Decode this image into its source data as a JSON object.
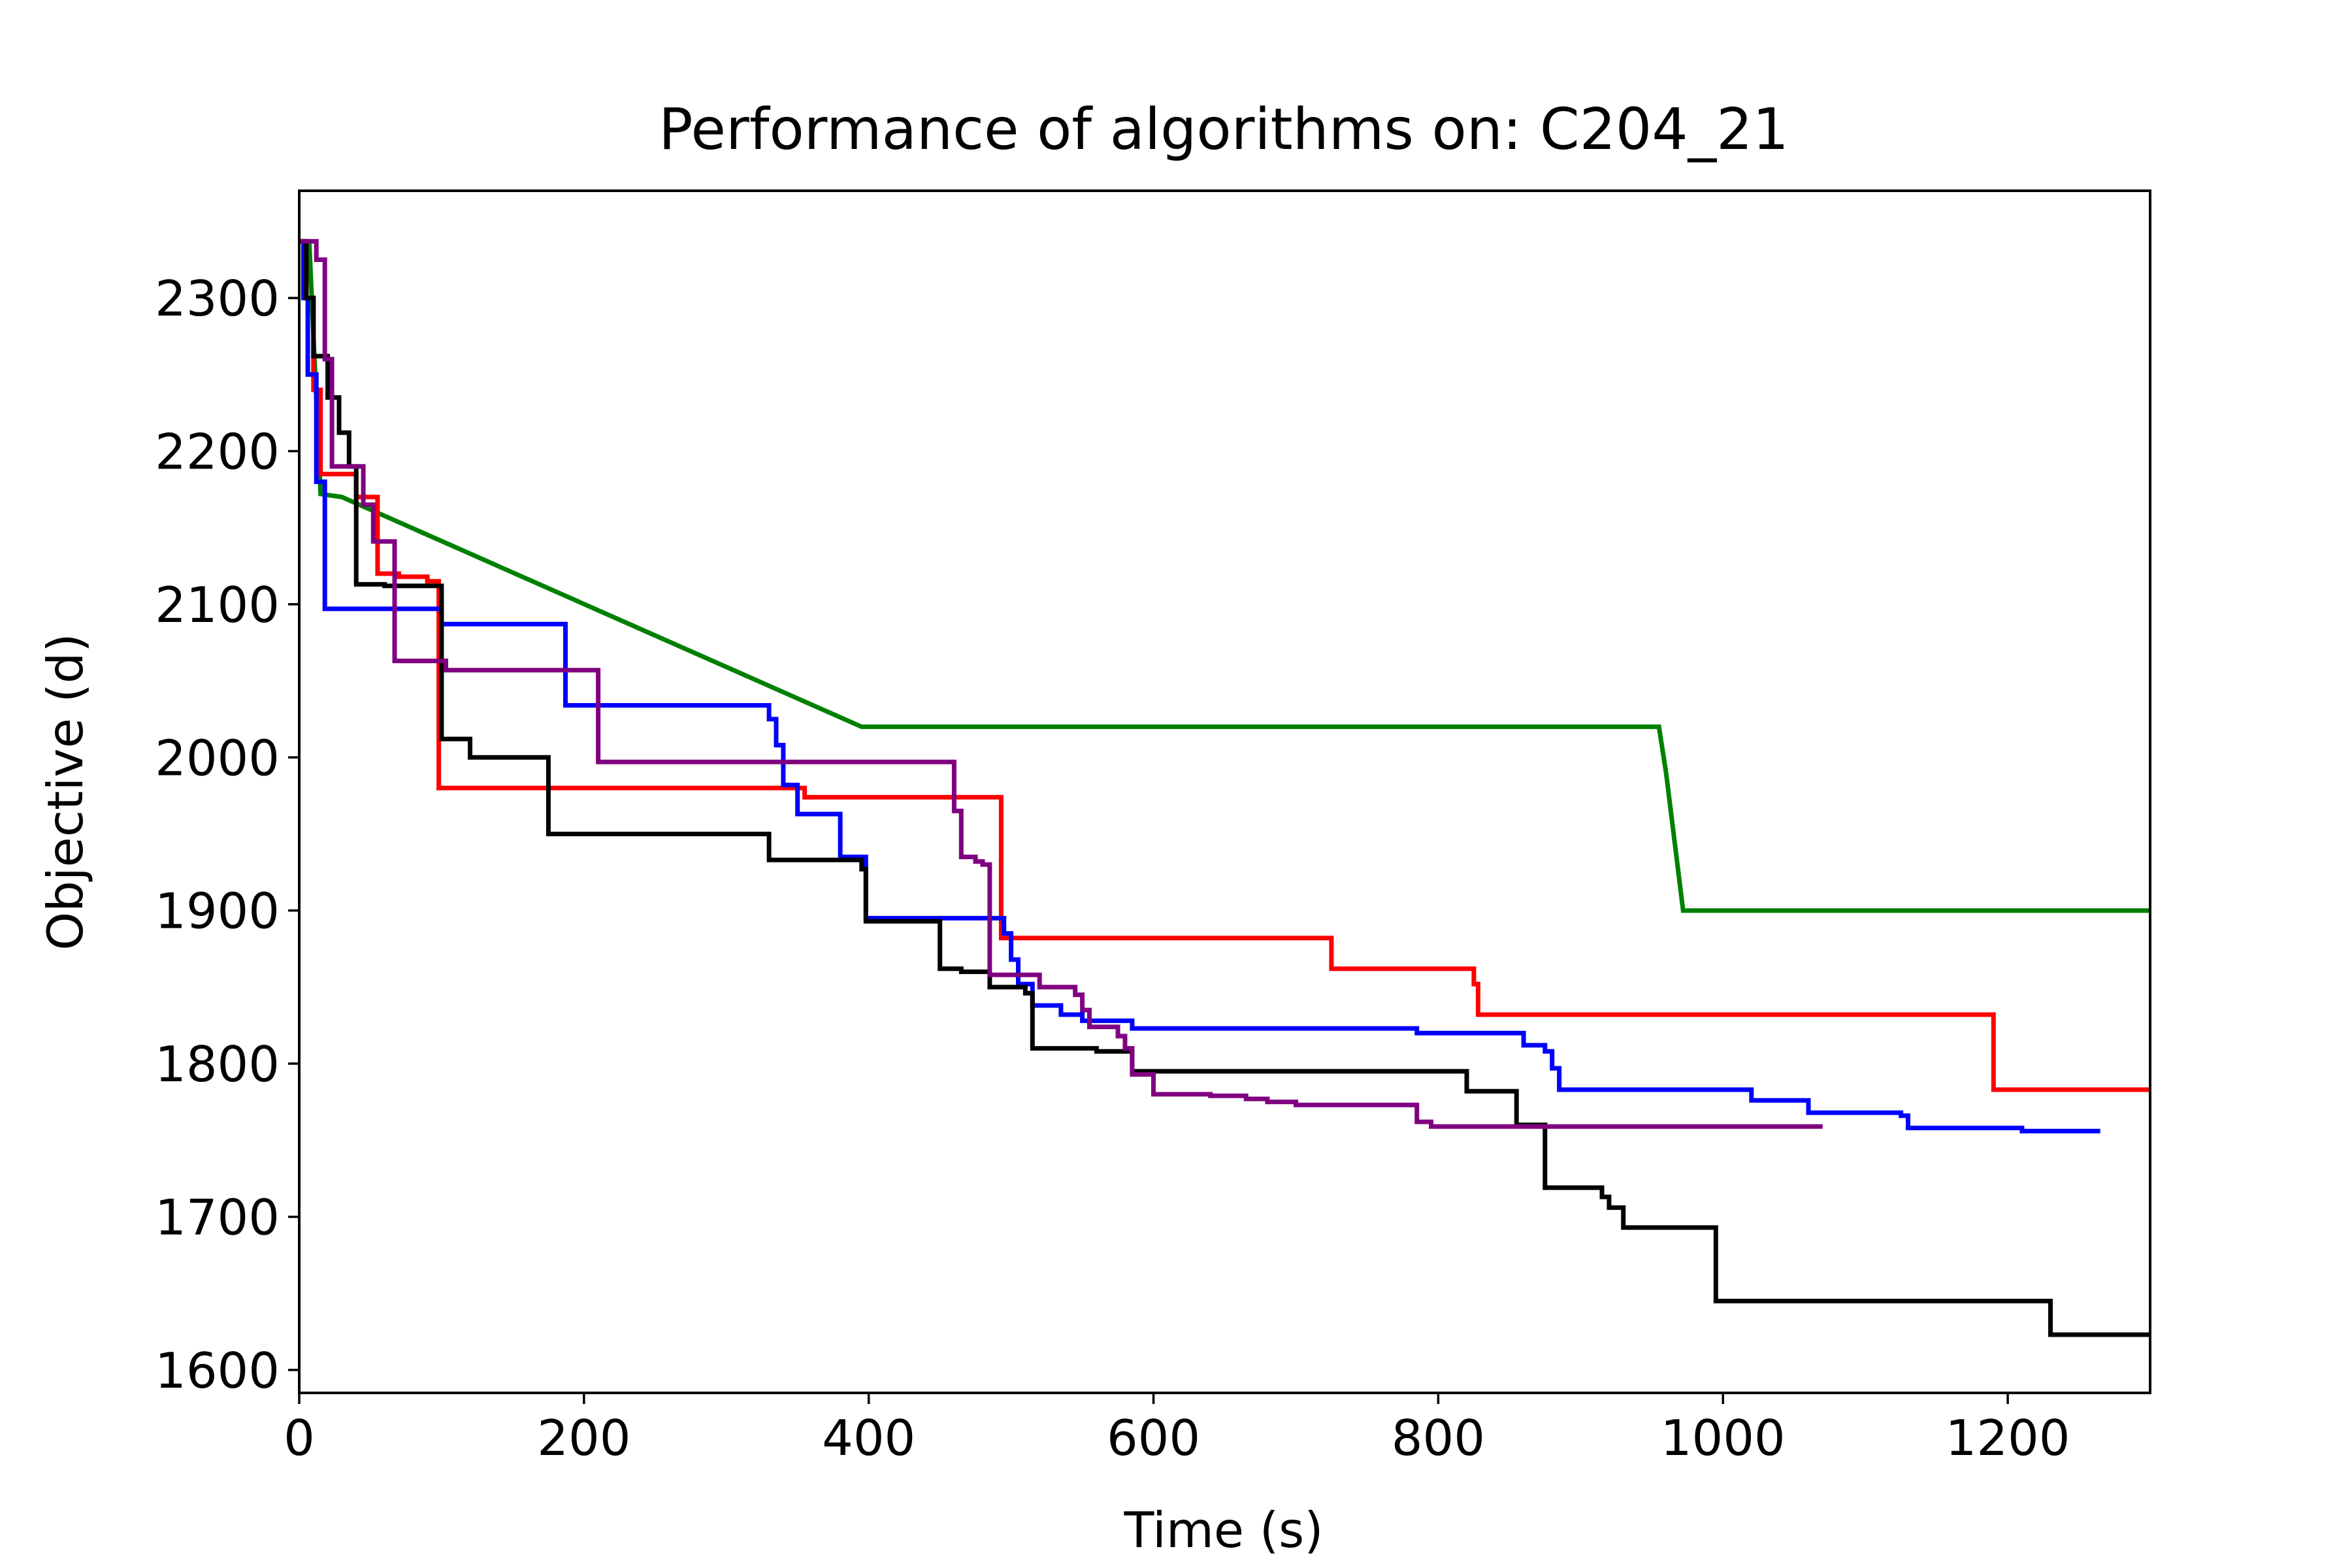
{
  "chart_data": {
    "type": "line",
    "title": "Performance of algorithms on: C204_21",
    "xlabel": "Time (s)",
    "ylabel": "Objective (d)",
    "xlim": [
      0,
      1300
    ],
    "ylim": [
      1585,
      2370
    ],
    "xticks": [
      0,
      200,
      400,
      600,
      800,
      1000,
      1200
    ],
    "yticks": [
      1600,
      1700,
      1800,
      1900,
      2000,
      2100,
      2200,
      2300
    ],
    "grid": false,
    "legend": "none",
    "series": [
      {
        "color": "#008000",
        "step": false,
        "points": [
          [
            0,
            2337
          ],
          [
            7,
            2337
          ],
          [
            15,
            2172
          ],
          [
            30,
            2170
          ],
          [
            395,
            2020
          ],
          [
            955,
            2020
          ],
          [
            960,
            1990
          ],
          [
            972,
            1900
          ],
          [
            1300,
            1900
          ]
        ]
      },
      {
        "color": "#ff0000",
        "step": true,
        "points": [
          [
            0,
            2337
          ],
          [
            5,
            2300
          ],
          [
            10,
            2240
          ],
          [
            15,
            2185
          ],
          [
            35,
            2185
          ],
          [
            40,
            2170
          ],
          [
            50,
            2170
          ],
          [
            55,
            2120
          ],
          [
            70,
            2118
          ],
          [
            90,
            2115
          ],
          [
            98,
            1980
          ],
          [
            330,
            1980
          ],
          [
            355,
            1974
          ],
          [
            490,
            1974
          ],
          [
            493,
            1882
          ],
          [
            720,
            1882
          ],
          [
            725,
            1862
          ],
          [
            820,
            1862
          ],
          [
            825,
            1852
          ],
          [
            828,
            1832
          ],
          [
            1185,
            1832
          ],
          [
            1190,
            1783
          ],
          [
            1300,
            1783
          ]
        ]
      },
      {
        "color": "#0000ff",
        "step": true,
        "points": [
          [
            0,
            2337
          ],
          [
            3,
            2300
          ],
          [
            6,
            2250
          ],
          [
            12,
            2180
          ],
          [
            18,
            2097
          ],
          [
            95,
            2097
          ],
          [
            100,
            2087
          ],
          [
            180,
            2087
          ],
          [
            187,
            2034
          ],
          [
            325,
            2034
          ],
          [
            330,
            2025
          ],
          [
            335,
            2008
          ],
          [
            340,
            1982
          ],
          [
            350,
            1963
          ],
          [
            375,
            1963
          ],
          [
            380,
            1935
          ],
          [
            393,
            1935
          ],
          [
            398,
            1895
          ],
          [
            490,
            1895
          ],
          [
            495,
            1885
          ],
          [
            500,
            1868
          ],
          [
            505,
            1852
          ],
          [
            515,
            1838
          ],
          [
            535,
            1832
          ],
          [
            550,
            1828
          ],
          [
            585,
            1823
          ],
          [
            780,
            1823
          ],
          [
            785,
            1820
          ],
          [
            850,
            1820
          ],
          [
            860,
            1812
          ],
          [
            875,
            1808
          ],
          [
            880,
            1797
          ],
          [
            885,
            1783
          ],
          [
            1010,
            1783
          ],
          [
            1020,
            1776
          ],
          [
            1055,
            1776
          ],
          [
            1060,
            1768
          ],
          [
            1115,
            1768
          ],
          [
            1125,
            1766
          ],
          [
            1130,
            1758
          ],
          [
            1205,
            1758
          ],
          [
            1210,
            1756
          ],
          [
            1265,
            1756
          ]
        ]
      },
      {
        "color": "#000000",
        "step": true,
        "points": [
          [
            0,
            2337
          ],
          [
            5,
            2300
          ],
          [
            10,
            2262
          ],
          [
            20,
            2235
          ],
          [
            28,
            2212
          ],
          [
            35,
            2190
          ],
          [
            40,
            2113
          ],
          [
            55,
            2113
          ],
          [
            60,
            2112
          ],
          [
            95,
            2112
          ],
          [
            100,
            2012
          ],
          [
            120,
            2000
          ],
          [
            170,
            2000
          ],
          [
            175,
            1950
          ],
          [
            325,
            1950
          ],
          [
            330,
            1933
          ],
          [
            390,
            1933
          ],
          [
            395,
            1927
          ],
          [
            398,
            1893
          ],
          [
            445,
            1893
          ],
          [
            450,
            1862
          ],
          [
            465,
            1860
          ],
          [
            485,
            1850
          ],
          [
            510,
            1846
          ],
          [
            515,
            1810
          ],
          [
            560,
            1808
          ],
          [
            575,
            1808
          ],
          [
            585,
            1795
          ],
          [
            815,
            1795
          ],
          [
            820,
            1782
          ],
          [
            850,
            1782
          ],
          [
            855,
            1760
          ],
          [
            868,
            1760
          ],
          [
            875,
            1719
          ],
          [
            910,
            1719
          ],
          [
            915,
            1713
          ],
          [
            920,
            1706
          ],
          [
            930,
            1693
          ],
          [
            990,
            1693
          ],
          [
            995,
            1645
          ],
          [
            1225,
            1645
          ],
          [
            1230,
            1623
          ],
          [
            1300,
            1623
          ]
        ]
      },
      {
        "color": "#800080",
        "step": true,
        "points": [
          [
            0,
            2337
          ],
          [
            8,
            2337
          ],
          [
            12,
            2325
          ],
          [
            18,
            2260
          ],
          [
            23,
            2190
          ],
          [
            40,
            2190
          ],
          [
            45,
            2165
          ],
          [
            52,
            2141
          ],
          [
            62,
            2141
          ],
          [
            67,
            2063
          ],
          [
            100,
            2063
          ],
          [
            103,
            2057
          ],
          [
            205,
            2057
          ],
          [
            210,
            1997
          ],
          [
            455,
            1997
          ],
          [
            460,
            1965
          ],
          [
            465,
            1935
          ],
          [
            475,
            1932
          ],
          [
            480,
            1930
          ],
          [
            485,
            1858
          ],
          [
            515,
            1858
          ],
          [
            520,
            1850
          ],
          [
            545,
            1845
          ],
          [
            550,
            1835
          ],
          [
            555,
            1824
          ],
          [
            575,
            1818
          ],
          [
            580,
            1810
          ],
          [
            585,
            1793
          ],
          [
            600,
            1780
          ],
          [
            640,
            1779
          ],
          [
            665,
            1777
          ],
          [
            680,
            1775
          ],
          [
            700,
            1773
          ],
          [
            780,
            1773
          ],
          [
            785,
            1762
          ],
          [
            795,
            1759
          ],
          [
            1070,
            1759
          ]
        ]
      }
    ]
  }
}
